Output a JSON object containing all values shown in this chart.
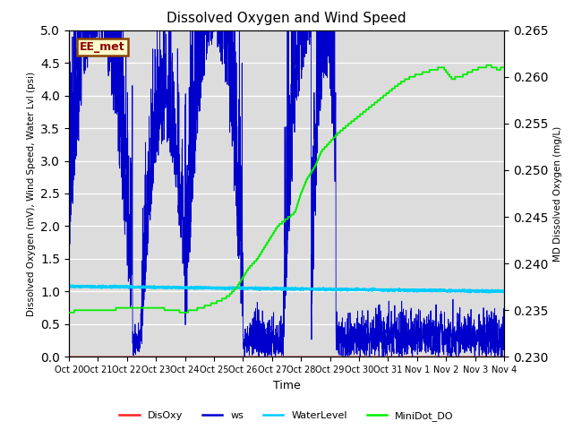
{
  "title": "Dissolved Oxygen and Wind Speed",
  "xlabel": "Time",
  "ylabel_left": "Dissolved Oxygen (mV), Wind Speed, Water Lvl (psi)",
  "ylabel_right": "MD Dissolved Oxygen (mg/L)",
  "ylim_left": [
    0.0,
    5.0
  ],
  "ylim_right": [
    0.23,
    0.265
  ],
  "bg_color": "#dcdcdc",
  "legend_items": [
    "DisOxy",
    "ws",
    "WaterLevel",
    "MiniDot_DO"
  ],
  "legend_colors": [
    "#ff0000",
    "#0000ff",
    "#00ccff",
    "#00ff00"
  ],
  "station_label": "EE_met",
  "station_label_color": "#8b0000",
  "station_label_bg": "#ffffcc",
  "station_label_edge": "#8b4500",
  "xtick_labels": [
    "Oct 20",
    "Oct 21",
    "Oct 22",
    "Oct 23",
    "Oct 24",
    "Oct 25",
    "Oct 26",
    "Oct 27",
    "Oct 28",
    "Oct 29",
    "Oct 30",
    "Oct 31",
    "Nov 1",
    "Nov 2",
    "Nov 3",
    "Nov 4"
  ],
  "n_days": 15,
  "seed": 12345
}
